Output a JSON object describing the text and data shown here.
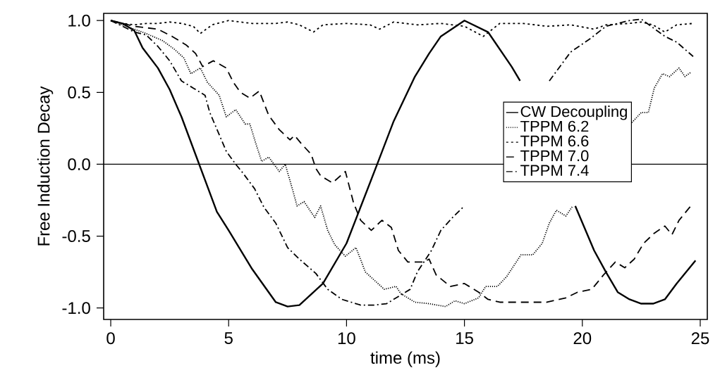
{
  "chart_data": {
    "type": "line",
    "xlabel": "time (ms)",
    "ylabel": "Free Induction Decay",
    "xlim": [
      -0.3,
      25.3
    ],
    "ylim": [
      -1.08,
      1.05
    ],
    "xticks": [
      0,
      5,
      10,
      15,
      20,
      25
    ],
    "yticks": [
      {
        "value": 1,
        "label": "1.0"
      },
      {
        "value": 0.5,
        "label": "0.5"
      },
      {
        "value": 0,
        "label": "0.0"
      },
      {
        "value": -0.5,
        "label": "-0.5"
      },
      {
        "value": -1,
        "label": "-1.0"
      }
    ],
    "legend": "right",
    "grid": false,
    "ref_lines": [
      {
        "axis": "y",
        "value": 0,
        "color": "#000000",
        "line_style": "solid"
      }
    ],
    "series": [
      {
        "name": "CW Decoupling",
        "color": "#000000",
        "line_style": "solid",
        "x": [
          0,
          0.5,
          1,
          1.35,
          2,
          2.5,
          3,
          3.75,
          4.5,
          5,
          6,
          7,
          7.5,
          8,
          9,
          10,
          11.3,
          12,
          12.9,
          13.5,
          14,
          15,
          16,
          17,
          17.36,
          18.5,
          19.7,
          20.5,
          21,
          21.5,
          22,
          22.5,
          23,
          23.5,
          24,
          24.8
        ],
        "values": [
          1.0,
          0.98,
          0.93,
          0.81,
          0.67,
          0.52,
          0.33,
          0.0,
          -0.33,
          -0.46,
          -0.73,
          -0.96,
          -0.99,
          -0.98,
          -0.83,
          -0.55,
          0.0,
          0.3,
          0.61,
          0.77,
          0.89,
          1.0,
          0.92,
          0.68,
          0.58,
          null,
          -0.29,
          -0.6,
          -0.75,
          -0.89,
          -0.94,
          -0.97,
          -0.97,
          -0.94,
          -0.83,
          -0.67
        ]
      },
      {
        "name": "TPPM 6.2",
        "color": "#000000",
        "line_style": "dotted",
        "x": [
          0,
          1.5,
          2.2,
          2.7,
          3.1,
          3.4,
          3.8,
          4.1,
          4.6,
          4.9,
          5.3,
          5.7,
          5.9,
          6.2,
          6.4,
          6.7,
          7.15,
          7.4,
          7.7,
          7.9,
          8.2,
          8.65,
          8.9,
          9.2,
          9.5,
          9.95,
          10.4,
          10.8,
          11.6,
          12.1,
          12.3,
          12.9,
          13.5,
          14.2,
          14.6,
          15.0,
          15.6,
          15.9,
          16.4,
          16.8,
          17.4,
          17.9,
          18.3,
          18.6,
          18.9,
          19.3,
          19.6,
          21,
          22.1,
          22.5,
          22.8,
          23.05,
          23.4,
          23.7,
          24.1,
          24.35,
          24.6
        ],
        "values": [
          1.0,
          0.91,
          0.86,
          0.8,
          0.74,
          0.63,
          0.67,
          0.57,
          0.48,
          0.33,
          0.38,
          0.28,
          0.28,
          0.12,
          0.02,
          0.05,
          -0.05,
          0.0,
          -0.17,
          -0.29,
          -0.26,
          -0.37,
          -0.29,
          -0.46,
          -0.56,
          -0.64,
          -0.58,
          -0.75,
          -0.87,
          -0.85,
          -0.9,
          -0.96,
          -0.97,
          -0.99,
          -0.95,
          -0.97,
          -0.93,
          -0.85,
          -0.85,
          -0.78,
          -0.63,
          -0.63,
          -0.55,
          -0.41,
          -0.32,
          -0.36,
          -0.29,
          null,
          0.29,
          0.36,
          0.36,
          0.53,
          0.63,
          0.61,
          0.67,
          0.61,
          0.64
        ]
      },
      {
        "name": "TPPM 6.6",
        "color": "#000000",
        "line_style": "densely dashed",
        "x": [
          0,
          0.5,
          1,
          1.5,
          2,
          2.5,
          3,
          3.5,
          3.8,
          4.3,
          5,
          6,
          7,
          7.5,
          8,
          8.6,
          9,
          10,
          11,
          11.4,
          12,
          13,
          14,
          15,
          15.8,
          16.5,
          17.5,
          18.5,
          19.5,
          20.5,
          21,
          22,
          22.5,
          23,
          23.5,
          24,
          24.7
        ],
        "values": [
          1.0,
          0.98,
          0.97,
          0.98,
          0.98,
          0.99,
          0.98,
          0.96,
          0.91,
          0.97,
          1.0,
          0.98,
          0.98,
          0.99,
          0.97,
          0.92,
          0.97,
          0.98,
          0.97,
          0.94,
          0.99,
          0.97,
          0.98,
          0.96,
          0.89,
          0.98,
          0.98,
          0.96,
          0.97,
          0.94,
          0.97,
          0.98,
          0.99,
          0.97,
          0.92,
          0.97,
          0.98
        ]
      },
      {
        "name": "TPPM 7.0",
        "color": "#000000",
        "line_style": "dashed",
        "x": [
          0,
          1,
          2,
          2.6,
          3.2,
          3.6,
          3.9,
          4.35,
          4.9,
          5.2,
          5.5,
          5.9,
          6.3,
          6.7,
          7.15,
          7.6,
          7.8,
          8.1,
          8.5,
          8.7,
          8.9,
          9.4,
          9.95,
          10.3,
          10.6,
          11.05,
          11.5,
          11.9,
          12.2,
          12.6,
          13.3,
          13.5,
          13.8,
          14.4,
          15.0,
          15.6,
          16.0,
          16.5,
          17.5,
          18.5,
          19.3,
          19.8,
          20.4,
          20.9,
          21.4,
          21.8,
          22.2,
          22.6,
          23.05,
          23.5,
          23.8,
          24.1,
          24.6
        ],
        "values": [
          1.0,
          0.96,
          0.94,
          0.89,
          0.83,
          0.77,
          0.68,
          0.72,
          0.67,
          0.57,
          0.5,
          0.46,
          0.51,
          0.34,
          0.24,
          0.17,
          0.2,
          0.14,
          0.07,
          -0.03,
          -0.08,
          -0.13,
          -0.05,
          -0.27,
          -0.39,
          -0.46,
          -0.39,
          -0.44,
          -0.6,
          -0.68,
          -0.68,
          -0.66,
          -0.77,
          -0.85,
          -0.83,
          -0.89,
          -0.94,
          -0.96,
          -0.96,
          -0.96,
          -0.93,
          -0.89,
          -0.87,
          -0.77,
          -0.68,
          -0.72,
          -0.66,
          -0.55,
          -0.48,
          -0.43,
          -0.49,
          -0.39,
          -0.29
        ]
      },
      {
        "name": "TPPM 7.4",
        "color": "#000000",
        "line_style": "dashdotted",
        "x": [
          0,
          1,
          1.5,
          2,
          2.5,
          3,
          3.5,
          4,
          4.2,
          4.9,
          5.3,
          5.6,
          6.1,
          6.5,
          7,
          7.5,
          8,
          8.7,
          9.2,
          9.8,
          10.2,
          10.6,
          11.2,
          11.7,
          12.2,
          12.7,
          13,
          13.6,
          14,
          14.5,
          15,
          17,
          18.6,
          19.5,
          20.3,
          21,
          22,
          22.5,
          23,
          23.5,
          24,
          24.7
        ],
        "values": [
          1.0,
          0.92,
          0.9,
          0.82,
          0.72,
          0.58,
          0.53,
          0.48,
          0.36,
          0.09,
          0.0,
          -0.06,
          -0.17,
          -0.3,
          -0.41,
          -0.58,
          -0.66,
          -0.76,
          -0.87,
          -0.94,
          -0.96,
          -0.98,
          -0.98,
          -0.97,
          -0.92,
          -0.87,
          -0.75,
          -0.6,
          -0.46,
          -0.37,
          -0.29,
          null,
          0.58,
          0.78,
          0.87,
          0.96,
          1.0,
          1.01,
          0.95,
          0.89,
          0.85,
          0.75
        ]
      }
    ]
  }
}
